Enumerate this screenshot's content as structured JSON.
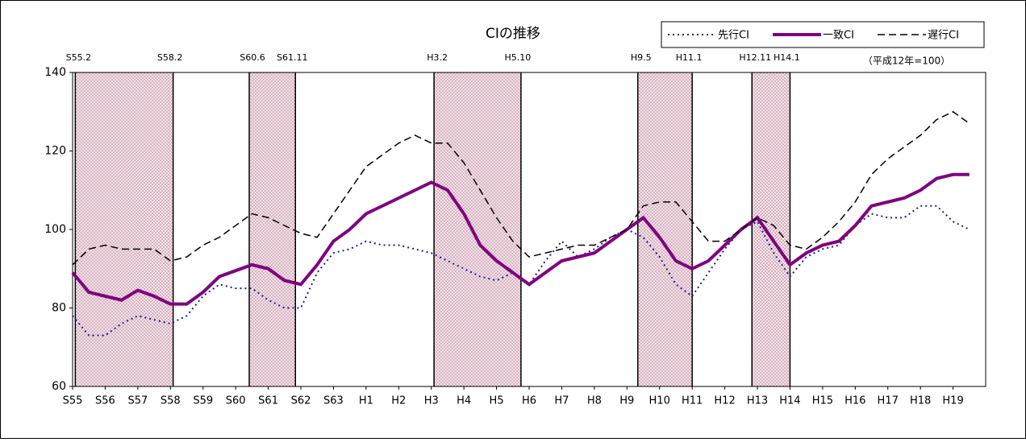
{
  "chart_data": {
    "type": "line",
    "title": "CIの推移",
    "note": "（平成12年=100）",
    "categories": [
      "S55",
      null,
      "S56",
      null,
      "S57",
      null,
      "S58",
      null,
      "S59",
      null,
      "S60",
      null,
      "S61",
      null,
      "S62",
      null,
      "S63",
      null,
      "H1",
      null,
      "H2",
      null,
      "H3",
      null,
      "H4",
      null,
      "H5",
      null,
      "H6",
      null,
      "H7",
      null,
      "H8",
      null,
      "H9",
      null,
      "H10",
      null,
      "H11",
      null,
      "H12",
      null,
      "H13",
      null,
      "H14",
      null,
      "H15",
      null,
      "H16",
      null,
      "H17",
      null,
      "H18",
      null,
      "H19",
      null
    ],
    "series": [
      {
        "name": "先行CI",
        "color": "#1c1c8c",
        "style": "dotted",
        "width": 2,
        "values": [
          78,
          73,
          73,
          76,
          78,
          77,
          76,
          78,
          83,
          86,
          85,
          85,
          82,
          80,
          80,
          89,
          94,
          95,
          97,
          96,
          96,
          95,
          94,
          92,
          90,
          88,
          87,
          89,
          86,
          92,
          97,
          93,
          95,
          98,
          100,
          98,
          93,
          86,
          83,
          89,
          95,
          100,
          102,
          94,
          88,
          93,
          95,
          96,
          101,
          104,
          103,
          103,
          106,
          106,
          102,
          100
        ]
      },
      {
        "name": "一致CI",
        "color": "#800080",
        "style": "solid",
        "width": 4,
        "values": [
          89,
          84,
          83,
          82,
          84.5,
          83,
          81,
          81,
          84,
          88,
          89.5,
          91,
          90,
          87,
          86,
          91,
          97,
          100,
          104,
          106,
          108,
          110,
          112,
          110,
          104,
          96,
          92,
          89,
          86,
          89,
          92,
          93,
          94,
          97,
          100,
          103,
          98,
          92,
          90,
          92,
          96,
          100,
          103,
          97,
          91,
          94,
          96,
          97,
          101,
          106,
          107,
          108,
          110,
          113,
          114,
          114
        ]
      },
      {
        "name": "遅行CI",
        "color": "#000000",
        "style": "dashed",
        "width": 1.5,
        "values": [
          91,
          95,
          96,
          95,
          95,
          95,
          92,
          93,
          96,
          98,
          101,
          104,
          103,
          101,
          99,
          98,
          104,
          110,
          116,
          119,
          122,
          124,
          122,
          122,
          117,
          110,
          103,
          97,
          93,
          94,
          95,
          96,
          96,
          98,
          100,
          106,
          107,
          107,
          102,
          97,
          97,
          100,
          103,
          101,
          96,
          95,
          98,
          102,
          107,
          114,
          118,
          121,
          124,
          128,
          130,
          127
        ]
      }
    ],
    "periods": [
      {
        "start": "S55.2",
        "end": "S58.2"
      },
      {
        "start": "S60.6",
        "end": "S61.11"
      },
      {
        "start": "H3.2",
        "end": "H5.10"
      },
      {
        "start": "H9.5",
        "end": "H11.1"
      },
      {
        "start": "H12.11",
        "end": "H14.1"
      }
    ],
    "ylim": [
      60,
      140
    ],
    "yticks": [
      60,
      80,
      100,
      120,
      140
    ],
    "grid": false,
    "legend": "top-right"
  }
}
